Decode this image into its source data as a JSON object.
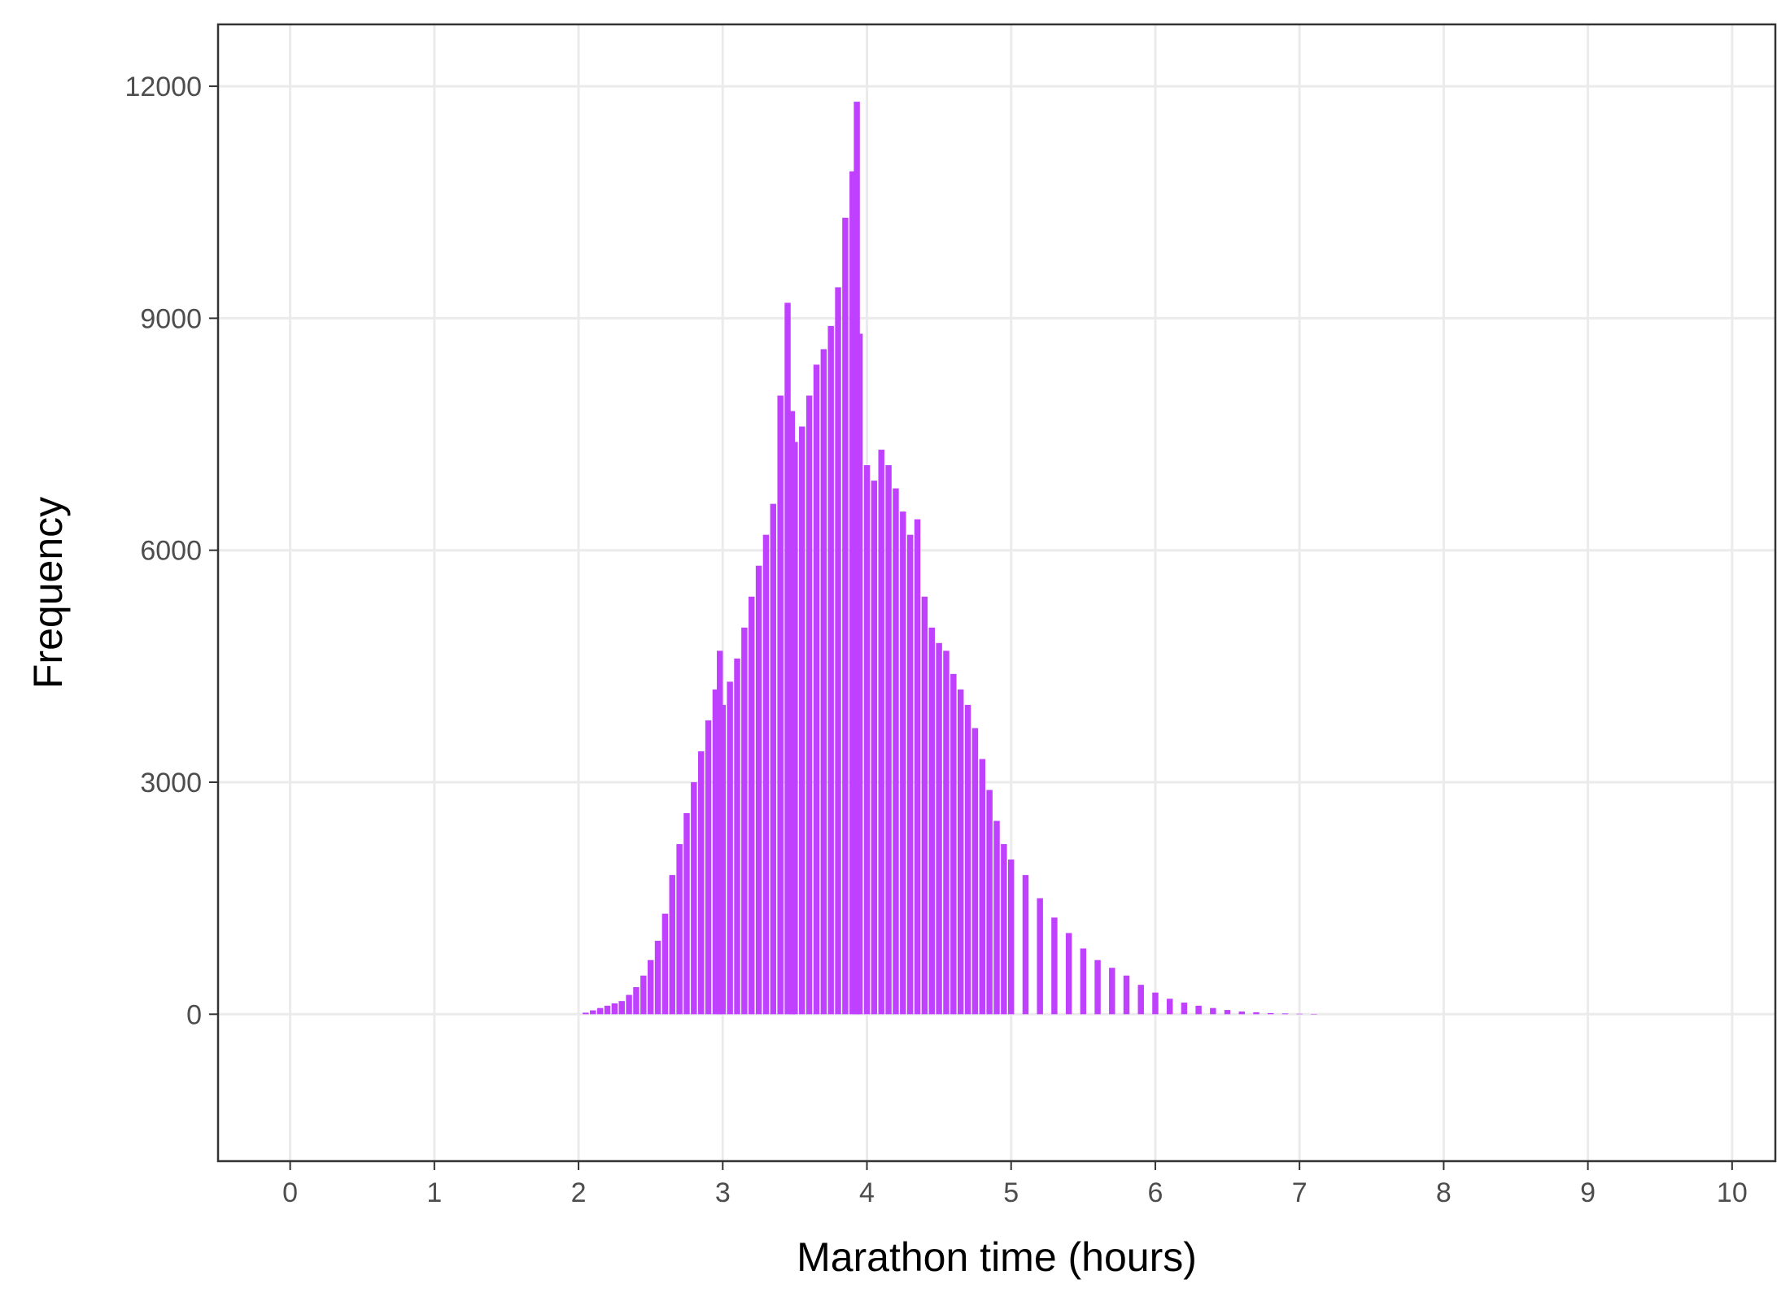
{
  "chart_data": {
    "type": "bar",
    "title": "",
    "xlabel": "Marathon time (hours)",
    "ylabel": "Frequency",
    "xlim": [
      -0.5,
      10.3
    ],
    "ylim": [
      -1900,
      12800
    ],
    "x_ticks": [
      0,
      1,
      2,
      3,
      4,
      5,
      6,
      7,
      8,
      9,
      10
    ],
    "y_ticks": [
      0,
      3000,
      6000,
      9000,
      12000
    ],
    "grid": true,
    "bar_color": "#BF40FF",
    "x": [
      2.05,
      2.1,
      2.15,
      2.2,
      2.25,
      2.3,
      2.35,
      2.4,
      2.45,
      2.5,
      2.55,
      2.6,
      2.65,
      2.7,
      2.75,
      2.8,
      2.85,
      2.9,
      2.95,
      2.98,
      3.0,
      3.05,
      3.1,
      3.15,
      3.2,
      3.25,
      3.3,
      3.35,
      3.4,
      3.45,
      3.48,
      3.5,
      3.55,
      3.6,
      3.65,
      3.7,
      3.75,
      3.8,
      3.85,
      3.9,
      3.93,
      3.95,
      4.0,
      4.05,
      4.1,
      4.15,
      4.2,
      4.25,
      4.3,
      4.35,
      4.4,
      4.45,
      4.5,
      4.55,
      4.6,
      4.65,
      4.7,
      4.75,
      4.8,
      4.85,
      4.9,
      4.95,
      5.0,
      5.1,
      5.2,
      5.3,
      5.4,
      5.5,
      5.6,
      5.7,
      5.8,
      5.9,
      6.0,
      6.1,
      6.2,
      6.3,
      6.4,
      6.5,
      6.6,
      6.7,
      6.8,
      6.9,
      7.0,
      7.1
    ],
    "values": [
      20,
      50,
      80,
      110,
      140,
      170,
      250,
      350,
      500,
      700,
      950,
      1300,
      1800,
      2200,
      2600,
      3000,
      3400,
      3800,
      4200,
      4700,
      4000,
      4300,
      4600,
      5000,
      5400,
      5800,
      6200,
      6600,
      8000,
      9200,
      7800,
      7400,
      7600,
      8000,
      8400,
      8600,
      8900,
      9400,
      10300,
      10900,
      11800,
      8800,
      7100,
      6900,
      7300,
      7100,
      6800,
      6500,
      6200,
      6400,
      5400,
      5000,
      4800,
      4700,
      4400,
      4200,
      4000,
      3700,
      3300,
      2900,
      2500,
      2200,
      2000,
      1800,
      1500,
      1250,
      1050,
      850,
      700,
      600,
      500,
      380,
      280,
      200,
      150,
      110,
      80,
      55,
      35,
      25,
      15,
      10,
      6,
      3
    ]
  }
}
